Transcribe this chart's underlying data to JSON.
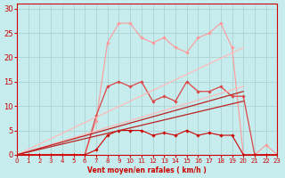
{
  "xlabel": "Vent moyen/en rafales ( km/h )",
  "xlim": [
    0,
    23
  ],
  "ylim": [
    0,
    31
  ],
  "xticks": [
    0,
    1,
    2,
    3,
    4,
    5,
    6,
    7,
    8,
    9,
    10,
    11,
    12,
    13,
    14,
    15,
    16,
    17,
    18,
    19,
    20,
    21,
    22,
    23
  ],
  "yticks": [
    0,
    5,
    10,
    15,
    20,
    25,
    30
  ],
  "background_color": "#c6eced",
  "grid_color": "#aacbcc",
  "series": [
    {
      "label": "upper_jagged_pale",
      "x": [
        0,
        1,
        2,
        3,
        4,
        5,
        6,
        7,
        8,
        9,
        10,
        11,
        12,
        13,
        14,
        15,
        16,
        17,
        18,
        19,
        20,
        21,
        22,
        23
      ],
      "y": [
        0,
        0,
        0,
        0,
        0,
        0,
        0,
        7,
        23,
        27,
        27,
        24,
        23,
        24,
        22,
        21,
        24,
        25,
        27,
        22,
        0,
        0,
        2,
        0
      ],
      "color": "#ff9999",
      "linewidth": 0.8,
      "marker": "D",
      "markersize": 1.8
    },
    {
      "label": "mid_jagged_medium",
      "x": [
        0,
        1,
        2,
        3,
        4,
        5,
        6,
        7,
        8,
        9,
        10,
        11,
        12,
        13,
        14,
        15,
        16,
        17,
        18,
        19,
        20,
        21,
        22,
        23
      ],
      "y": [
        0,
        0,
        0,
        0,
        0,
        0,
        0,
        8,
        14,
        15,
        14,
        15,
        11,
        12,
        11,
        15,
        13,
        13,
        14,
        12,
        12,
        0,
        0,
        0
      ],
      "color": "#dd4444",
      "linewidth": 0.9,
      "marker": "D",
      "markersize": 1.8
    },
    {
      "label": "lower_jagged_dark",
      "x": [
        0,
        1,
        2,
        3,
        4,
        5,
        6,
        7,
        8,
        9,
        10,
        11,
        12,
        13,
        14,
        15,
        16,
        17,
        18,
        19,
        20,
        21,
        22,
        23
      ],
      "y": [
        0,
        0,
        0,
        0,
        0,
        0,
        0,
        1,
        4,
        5,
        5,
        5,
        4,
        4.5,
        4,
        5,
        4,
        4.5,
        4,
        4,
        0,
        0,
        0,
        0
      ],
      "color": "#cc0000",
      "linewidth": 0.8,
      "marker": "D",
      "markersize": 1.8
    },
    {
      "label": "diag_line_pale_upper",
      "x": [
        0,
        20
      ],
      "y": [
        0,
        22
      ],
      "color": "#ffbbbb",
      "linewidth": 0.9,
      "marker": null,
      "markersize": 0
    },
    {
      "label": "diag_line_pale_lower",
      "x": [
        0,
        20
      ],
      "y": [
        0,
        14
      ],
      "color": "#ffbbbb",
      "linewidth": 0.9,
      "marker": null,
      "markersize": 0
    },
    {
      "label": "diag_line_dark_upper",
      "x": [
        0,
        20
      ],
      "y": [
        0,
        13
      ],
      "color": "#bb2222",
      "linewidth": 0.9,
      "marker": null,
      "markersize": 0
    },
    {
      "label": "diag_line_dark_lower",
      "x": [
        0,
        20
      ],
      "y": [
        0,
        11
      ],
      "color": "#bb2222",
      "linewidth": 0.9,
      "marker": null,
      "markersize": 0
    }
  ]
}
